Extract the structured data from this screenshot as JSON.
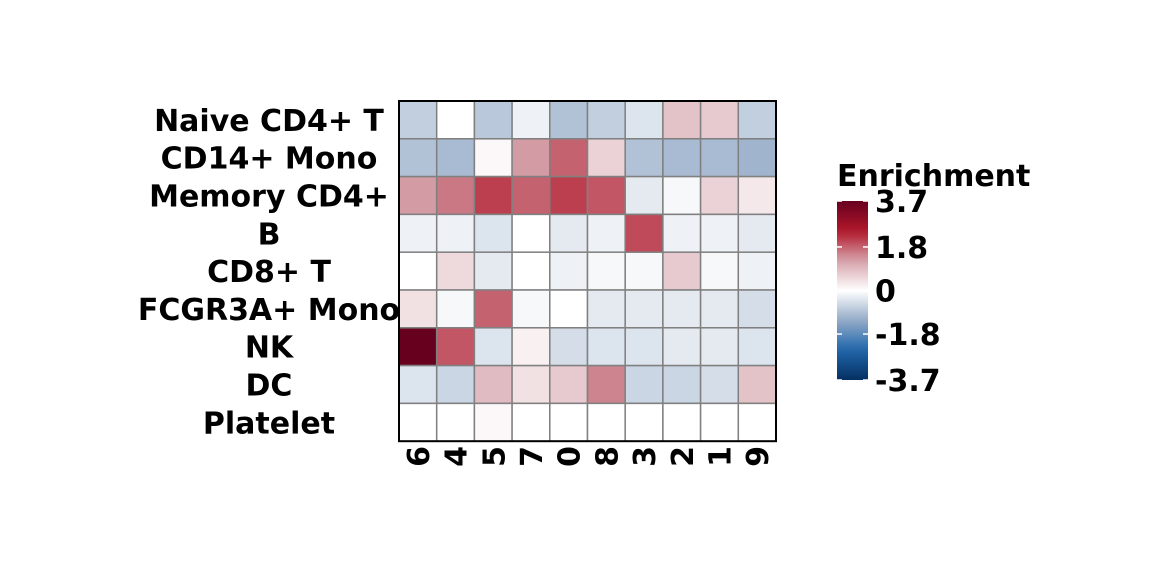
{
  "chart_data": {
    "type": "heatmap",
    "title": "",
    "xlabel": "",
    "ylabel": "",
    "rows": [
      "Naive CD4+ T",
      "CD14+ Mono",
      "Memory CD4+",
      "B",
      "CD8+ T",
      "FCGR3A+ Mono",
      "NK",
      "DC",
      "Platelet"
    ],
    "columns": [
      "6",
      "4",
      "5",
      "7",
      "0",
      "8",
      "3",
      "2",
      "1",
      "9"
    ],
    "values": [
      [
        -0.7,
        0.0,
        -0.8,
        -0.2,
        -0.9,
        -0.7,
        -0.4,
        0.8,
        0.7,
        -0.7
      ],
      [
        -0.9,
        -1.0,
        0.1,
        1.3,
        1.8,
        0.6,
        -0.9,
        -1.0,
        -1.0,
        -1.1
      ],
      [
        1.3,
        1.6,
        2.1,
        1.8,
        2.1,
        1.9,
        -0.3,
        -0.1,
        0.6,
        0.3
      ],
      [
        -0.2,
        -0.2,
        -0.4,
        0.0,
        -0.3,
        -0.2,
        2.0,
        -0.2,
        -0.2,
        -0.3
      ],
      [
        0.0,
        0.5,
        -0.3,
        0.0,
        -0.2,
        -0.1,
        -0.1,
        0.7,
        -0.1,
        -0.2
      ],
      [
        0.4,
        -0.1,
        1.8,
        -0.1,
        0.0,
        -0.3,
        -0.3,
        -0.3,
        -0.3,
        -0.5
      ],
      [
        3.7,
        1.9,
        -0.4,
        0.2,
        -0.5,
        -0.4,
        -0.4,
        -0.3,
        -0.3,
        -0.4
      ],
      [
        -0.4,
        -0.6,
        0.9,
        0.4,
        0.7,
        1.5,
        -0.6,
        -0.6,
        -0.5,
        0.8
      ],
      [
        0.0,
        0.0,
        0.1,
        0.0,
        0.0,
        0.0,
        0.0,
        0.0,
        0.0,
        0.0
      ]
    ],
    "legend": {
      "title": "Enrichment",
      "ticks": [
        "3.7",
        "1.8",
        "0",
        "-1.8",
        "-3.7"
      ],
      "tick_values": [
        3.7,
        1.8,
        0,
        -1.8,
        -3.7
      ],
      "range": [
        -3.7,
        3.7
      ],
      "colors": {
        "high": "#67001f",
        "mid": "#ffffff",
        "low": "#053061"
      },
      "placement": "right"
    },
    "grid_color": "#808080",
    "border_color": "#000000"
  }
}
